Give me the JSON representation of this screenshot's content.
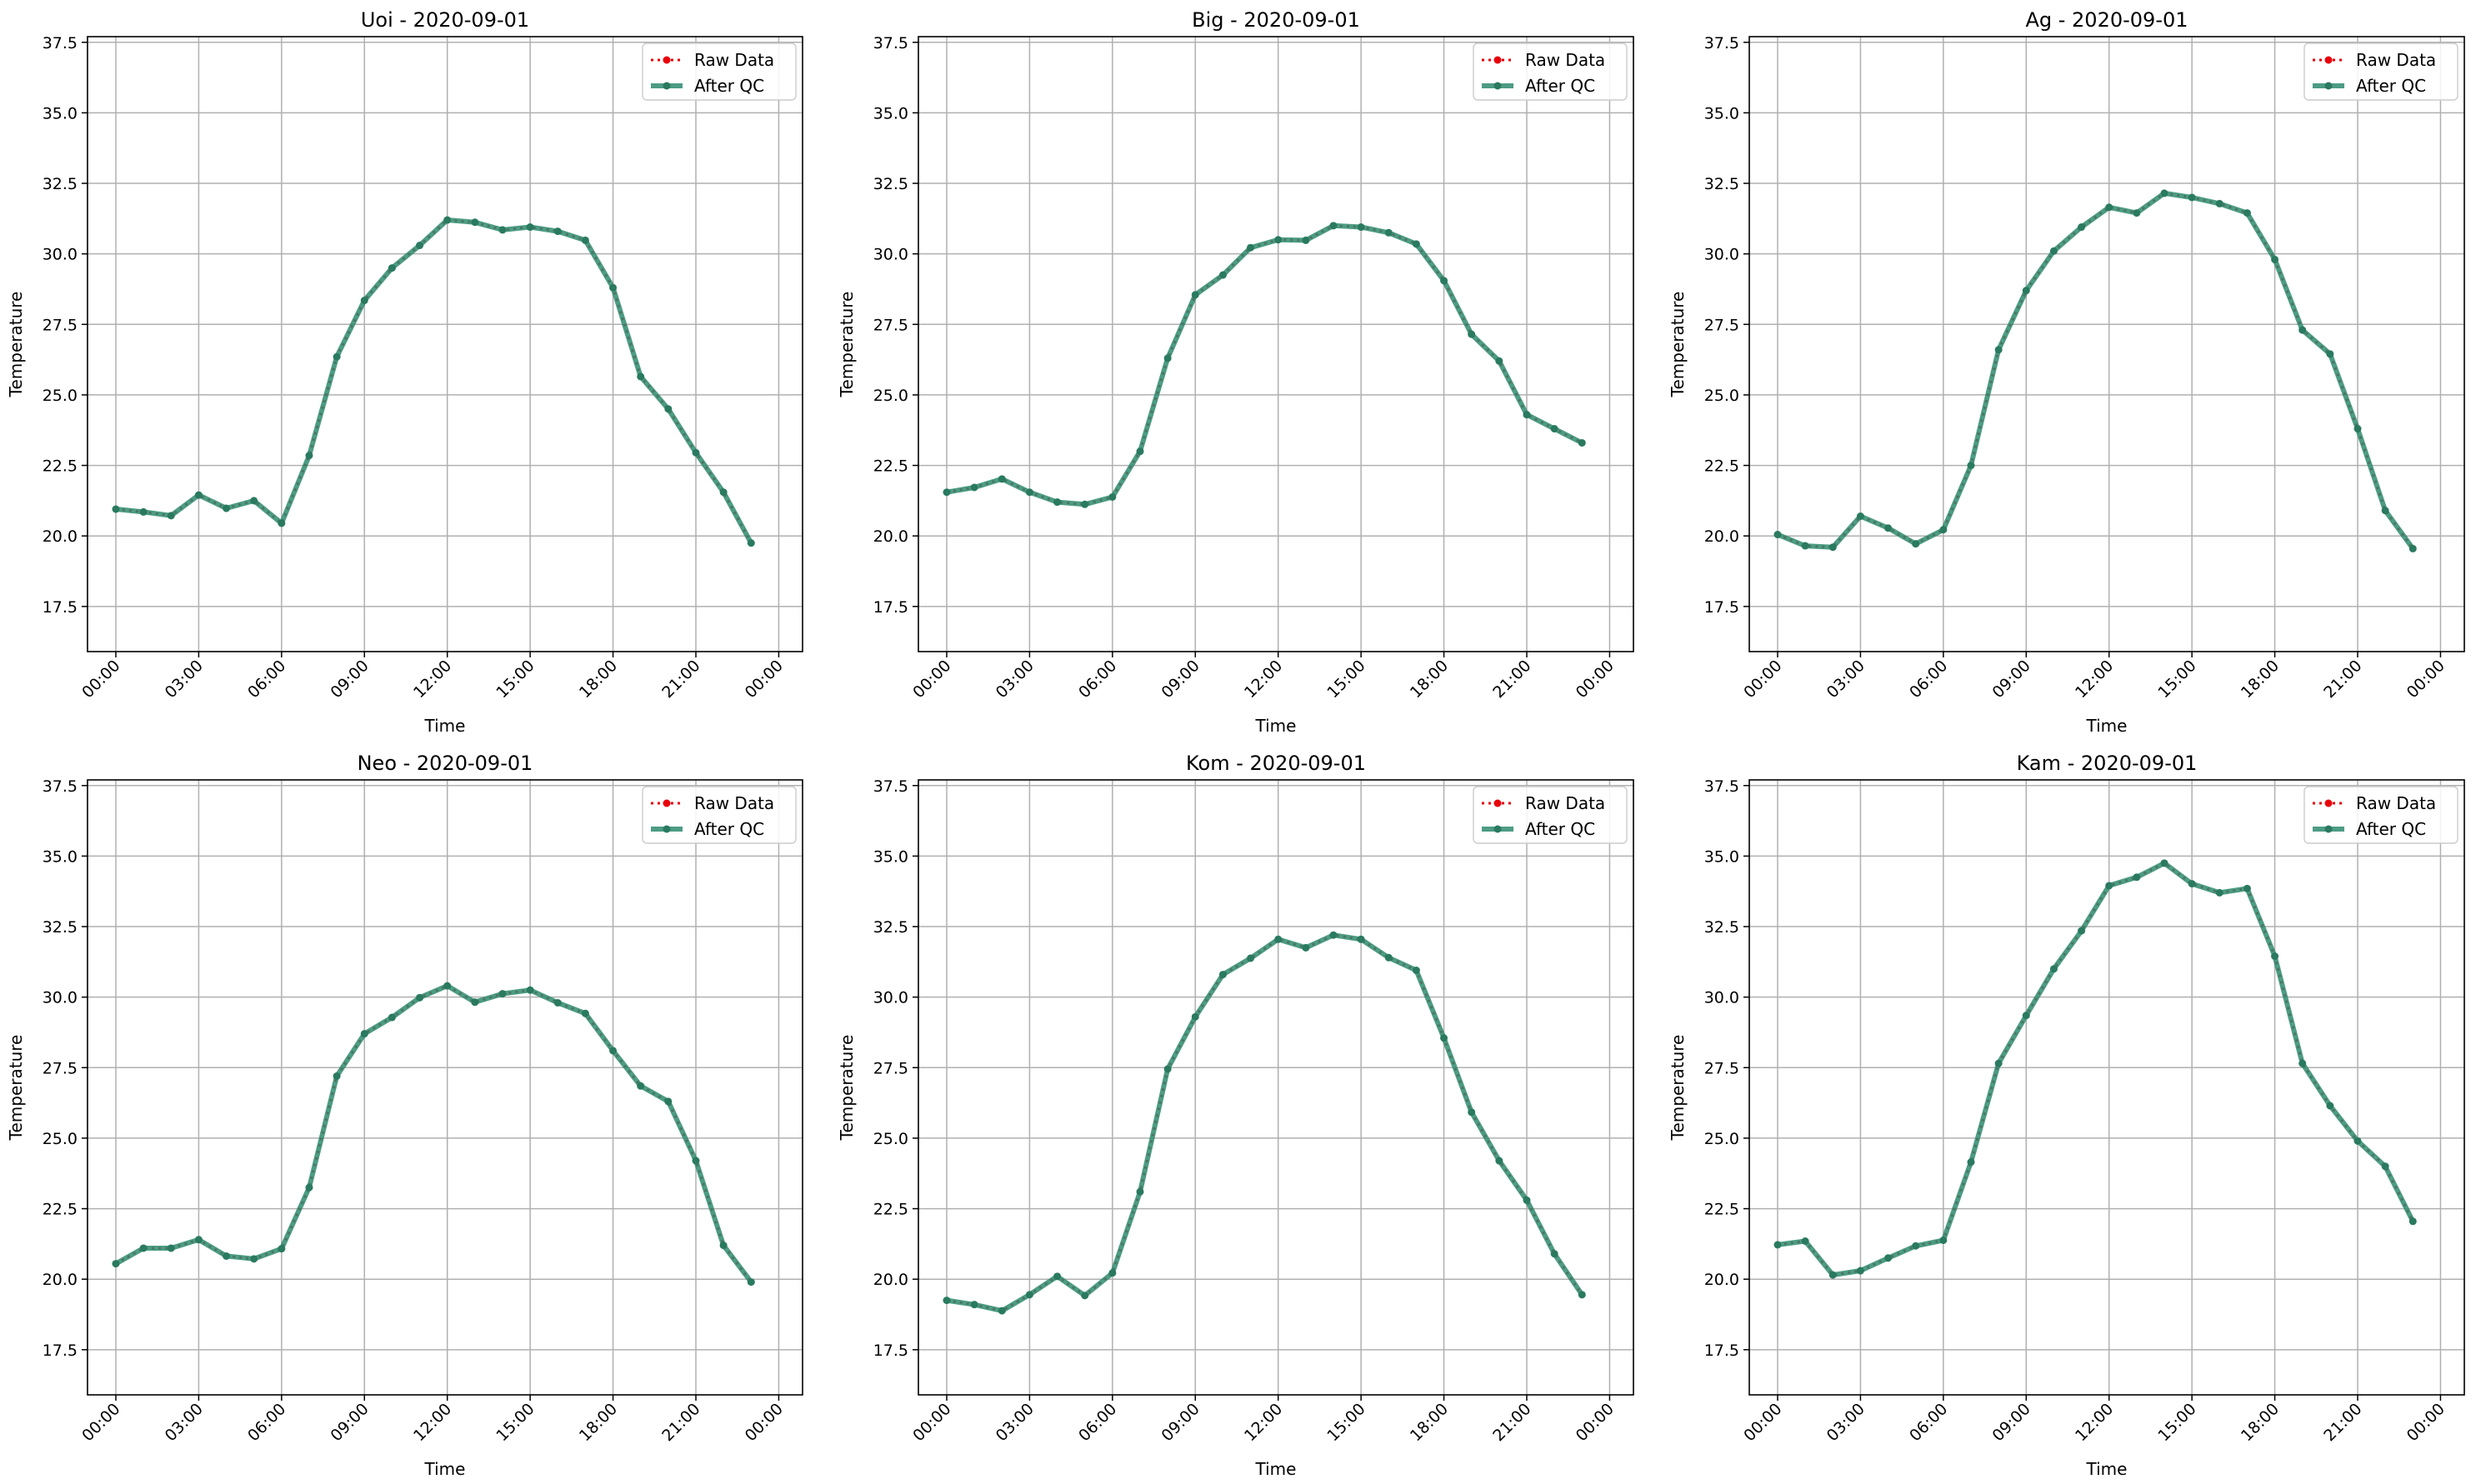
{
  "figure": {
    "shared": {
      "xlabel": "Time",
      "ylabel": "Temperature",
      "ylim": [
        15.9,
        37.7
      ],
      "yticks": [
        "17.5",
        "20.0",
        "22.5",
        "25.0",
        "27.5",
        "30.0",
        "32.5",
        "35.0",
        "37.5"
      ],
      "xticks": [
        "00:00",
        "03:00",
        "06:00",
        "09:00",
        "12:00",
        "15:00",
        "18:00",
        "21:00",
        "00:00"
      ],
      "legend": {
        "raw": "Raw Data",
        "qc": "After QC",
        "placement": "top-right"
      },
      "colors": {
        "raw": "#e8000b",
        "qc": "#2e8b6e",
        "qc_marker": "#2a7a60",
        "grid": "#b0b0b0",
        "axis": "#000000"
      },
      "grid": true
    }
  },
  "chart_data": [
    {
      "type": "line",
      "title": "Uoi - 2020-09-01",
      "xlabel": "Time",
      "ylabel": "Temperature",
      "x": [
        "00:00",
        "01:00",
        "02:00",
        "03:00",
        "04:00",
        "05:00",
        "06:00",
        "07:00",
        "08:00",
        "09:00",
        "10:00",
        "11:00",
        "12:00",
        "13:00",
        "14:00",
        "15:00",
        "16:00",
        "17:00",
        "18:00",
        "19:00",
        "20:00",
        "21:00",
        "22:00",
        "23:00"
      ],
      "series": [
        {
          "name": "Raw Data",
          "values": [
            20.95,
            20.85,
            20.72,
            21.45,
            20.98,
            21.25,
            20.45,
            22.85,
            26.35,
            28.35,
            29.5,
            30.3,
            31.2,
            31.12,
            30.85,
            30.95,
            30.8,
            30.48,
            28.8,
            25.65,
            24.5,
            22.95,
            21.55,
            19.75
          ]
        },
        {
          "name": "After QC",
          "values": [
            20.95,
            20.85,
            20.72,
            21.45,
            20.98,
            21.25,
            20.45,
            22.85,
            26.35,
            28.35,
            29.5,
            30.3,
            31.2,
            31.12,
            30.85,
            30.95,
            30.8,
            30.48,
            28.8,
            25.65,
            24.5,
            22.95,
            21.55,
            19.75
          ]
        }
      ],
      "ylim": [
        15.9,
        37.7
      ]
    },
    {
      "type": "line",
      "title": "Big - 2020-09-01",
      "xlabel": "Time",
      "ylabel": "Temperature",
      "x": [
        "00:00",
        "01:00",
        "02:00",
        "03:00",
        "04:00",
        "05:00",
        "06:00",
        "07:00",
        "08:00",
        "09:00",
        "10:00",
        "11:00",
        "12:00",
        "13:00",
        "14:00",
        "15:00",
        "16:00",
        "17:00",
        "18:00",
        "19:00",
        "20:00",
        "21:00",
        "22:00",
        "23:00"
      ],
      "series": [
        {
          "name": "Raw Data",
          "values": [
            21.55,
            21.72,
            22.02,
            21.55,
            21.2,
            21.12,
            21.38,
            23.0,
            26.3,
            28.55,
            29.25,
            30.22,
            30.5,
            30.48,
            31.0,
            30.95,
            30.75,
            30.35,
            29.05,
            27.15,
            26.2,
            24.3,
            23.8,
            23.3
          ]
        },
        {
          "name": "After QC",
          "values": [
            21.55,
            21.72,
            22.02,
            21.55,
            21.2,
            21.12,
            21.38,
            23.0,
            26.3,
            28.55,
            29.25,
            30.22,
            30.5,
            30.48,
            31.0,
            30.95,
            30.75,
            30.35,
            29.05,
            27.15,
            26.2,
            24.3,
            23.8,
            23.3
          ]
        }
      ],
      "ylim": [
        15.9,
        37.7
      ]
    },
    {
      "type": "line",
      "title": "Ag - 2020-09-01",
      "xlabel": "Time",
      "ylabel": "Temperature",
      "x": [
        "00:00",
        "01:00",
        "02:00",
        "03:00",
        "04:00",
        "05:00",
        "06:00",
        "07:00",
        "08:00",
        "09:00",
        "10:00",
        "11:00",
        "12:00",
        "13:00",
        "14:00",
        "15:00",
        "16:00",
        "17:00",
        "18:00",
        "19:00",
        "20:00",
        "21:00",
        "22:00",
        "23:00"
      ],
      "series": [
        {
          "name": "Raw Data",
          "values": [
            20.05,
            19.65,
            19.6,
            20.7,
            20.28,
            19.72,
            20.22,
            22.5,
            26.6,
            28.7,
            30.1,
            30.95,
            31.65,
            31.45,
            32.15,
            32.0,
            31.78,
            31.45,
            29.8,
            27.3,
            26.45,
            23.8,
            20.9,
            19.55
          ]
        },
        {
          "name": "After QC",
          "values": [
            20.05,
            19.65,
            19.6,
            20.7,
            20.28,
            19.72,
            20.22,
            22.5,
            26.6,
            28.7,
            30.1,
            30.95,
            31.65,
            31.45,
            32.15,
            32.0,
            31.78,
            31.45,
            29.8,
            27.3,
            26.45,
            23.8,
            20.9,
            19.55
          ]
        }
      ],
      "ylim": [
        15.9,
        37.7
      ]
    },
    {
      "type": "line",
      "title": "Neo - 2020-09-01",
      "xlabel": "Time",
      "ylabel": "Temperature",
      "x": [
        "00:00",
        "01:00",
        "02:00",
        "03:00",
        "04:00",
        "05:00",
        "06:00",
        "07:00",
        "08:00",
        "09:00",
        "10:00",
        "11:00",
        "12:00",
        "13:00",
        "14:00",
        "15:00",
        "16:00",
        "17:00",
        "18:00",
        "19:00",
        "20:00",
        "21:00",
        "22:00",
        "23:00"
      ],
      "series": [
        {
          "name": "Raw Data",
          "values": [
            20.55,
            21.1,
            21.1,
            21.4,
            20.82,
            20.72,
            21.08,
            23.25,
            27.2,
            28.7,
            29.28,
            29.98,
            30.4,
            29.82,
            30.12,
            30.25,
            29.8,
            29.42,
            28.1,
            26.85,
            26.3,
            24.2,
            21.2,
            19.9
          ]
        },
        {
          "name": "After QC",
          "values": [
            20.55,
            21.1,
            21.1,
            21.4,
            20.82,
            20.72,
            21.08,
            23.25,
            27.2,
            28.7,
            29.28,
            29.98,
            30.4,
            29.82,
            30.12,
            30.25,
            29.8,
            29.42,
            28.1,
            26.85,
            26.3,
            24.2,
            21.2,
            19.9
          ]
        }
      ],
      "ylim": [
        15.9,
        37.7
      ]
    },
    {
      "type": "line",
      "title": "Kom - 2020-09-01",
      "xlabel": "Time",
      "ylabel": "Temperature",
      "x": [
        "00:00",
        "01:00",
        "02:00",
        "03:00",
        "04:00",
        "05:00",
        "06:00",
        "07:00",
        "08:00",
        "09:00",
        "10:00",
        "11:00",
        "12:00",
        "13:00",
        "14:00",
        "15:00",
        "16:00",
        "17:00",
        "18:00",
        "19:00",
        "20:00",
        "21:00",
        "22:00",
        "23:00"
      ],
      "series": [
        {
          "name": "Raw Data",
          "values": [
            19.25,
            19.1,
            18.88,
            19.45,
            20.1,
            19.42,
            20.22,
            23.1,
            27.45,
            29.3,
            30.8,
            31.38,
            32.05,
            31.75,
            32.2,
            32.05,
            31.4,
            30.95,
            28.55,
            25.92,
            24.2,
            22.8,
            20.9,
            19.45
          ]
        },
        {
          "name": "After QC",
          "values": [
            19.25,
            19.1,
            18.88,
            19.45,
            20.1,
            19.42,
            20.22,
            23.1,
            27.45,
            29.3,
            30.8,
            31.38,
            32.05,
            31.75,
            32.2,
            32.05,
            31.4,
            30.95,
            28.55,
            25.92,
            24.2,
            22.8,
            20.9,
            19.45
          ]
        }
      ],
      "ylim": [
        15.9,
        37.7
      ]
    },
    {
      "type": "line",
      "title": "Kam - 2020-09-01",
      "xlabel": "Time",
      "ylabel": "Temperature",
      "x": [
        "00:00",
        "01:00",
        "02:00",
        "03:00",
        "04:00",
        "05:00",
        "06:00",
        "07:00",
        "08:00",
        "09:00",
        "10:00",
        "11:00",
        "12:00",
        "13:00",
        "14:00",
        "15:00",
        "16:00",
        "17:00",
        "18:00",
        "19:00",
        "20:00",
        "21:00",
        "22:00",
        "23:00"
      ],
      "series": [
        {
          "name": "Raw Data",
          "values": [
            21.22,
            21.35,
            20.15,
            20.3,
            20.75,
            21.18,
            21.38,
            24.15,
            27.65,
            29.35,
            31.0,
            32.35,
            33.95,
            34.25,
            34.75,
            34.02,
            33.7,
            33.85,
            31.45,
            27.65,
            26.15,
            24.9,
            24.0,
            22.05
          ]
        },
        {
          "name": "After QC",
          "values": [
            21.22,
            21.35,
            20.15,
            20.3,
            20.75,
            21.18,
            21.38,
            24.15,
            27.65,
            29.35,
            31.0,
            32.35,
            33.95,
            34.25,
            34.75,
            34.02,
            33.7,
            33.85,
            31.45,
            27.65,
            26.15,
            24.9,
            24.0,
            22.05
          ]
        }
      ],
      "ylim": [
        15.9,
        37.7
      ]
    }
  ]
}
